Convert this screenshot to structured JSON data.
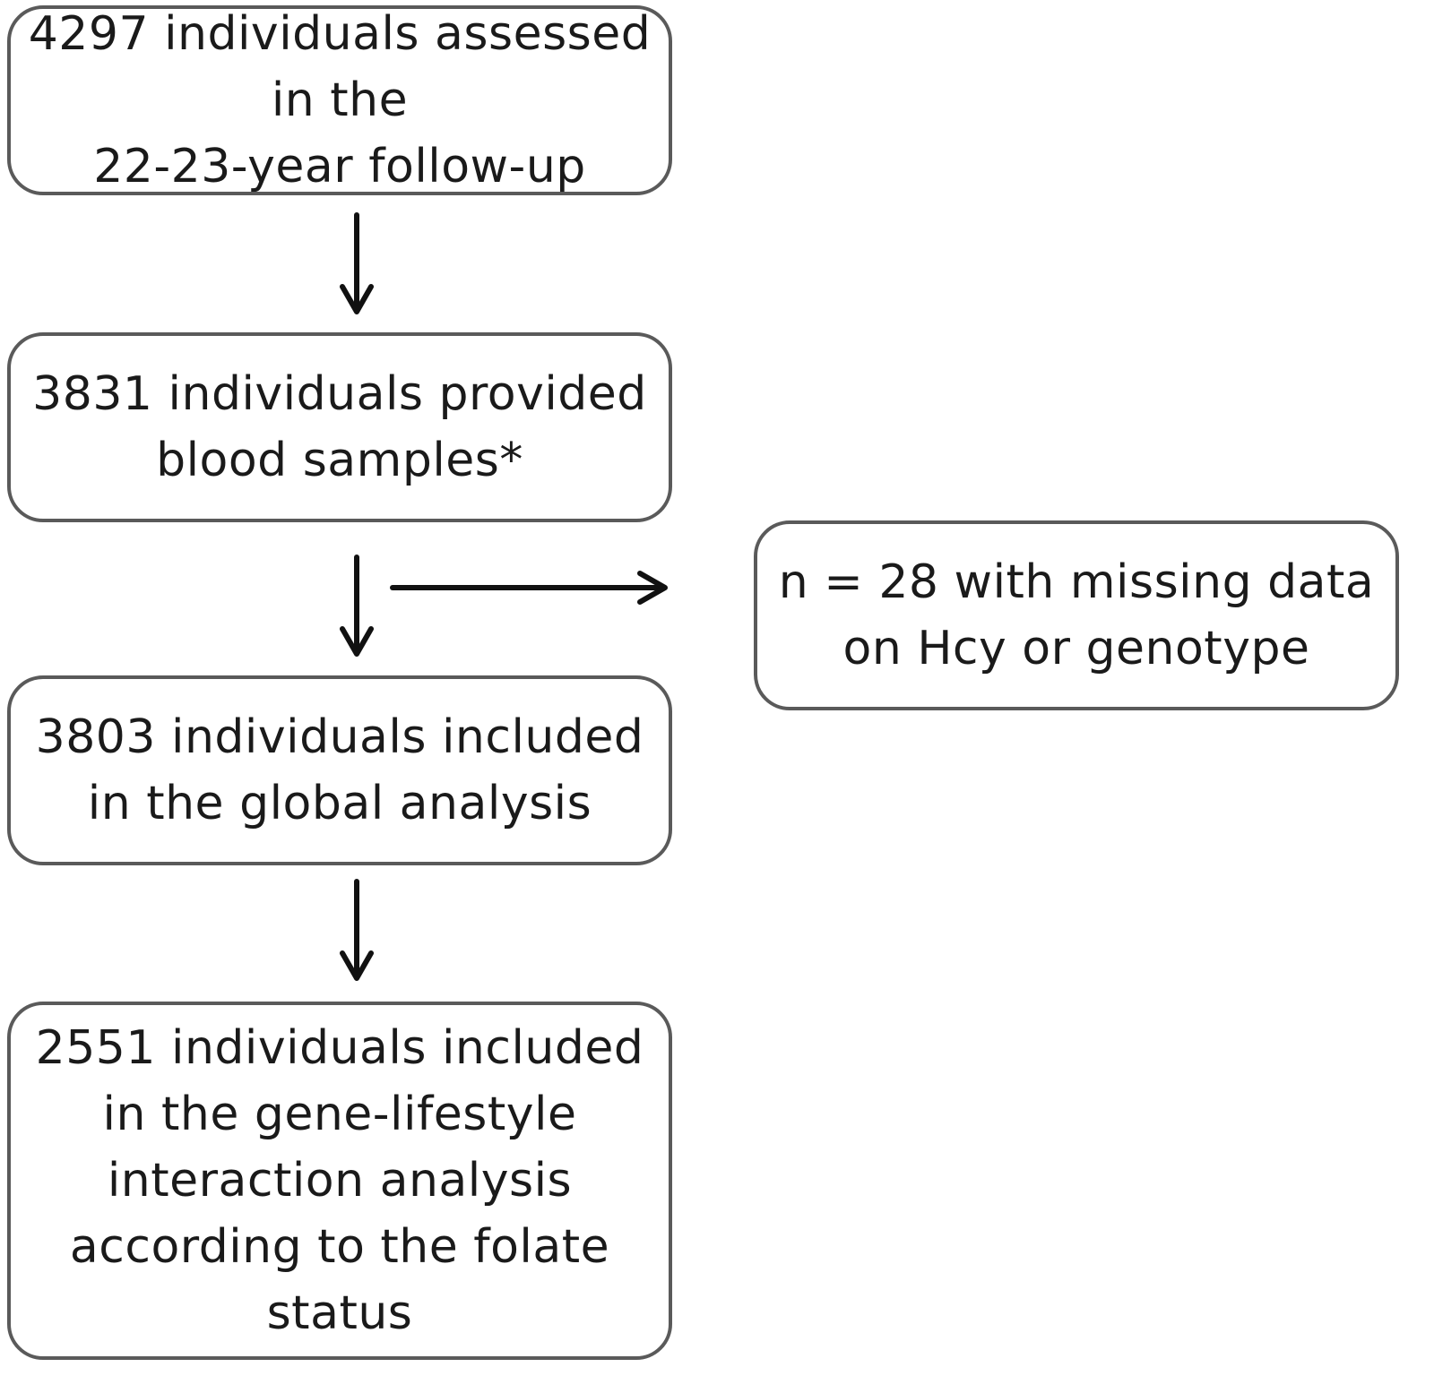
{
  "flow": {
    "assessed": [
      "4297 individuals assessed",
      "in the",
      "22-23-year follow-up"
    ],
    "blood_samples": [
      "3831 individuals provided",
      "blood samples*"
    ],
    "global_analysis": [
      "3803 individuals included",
      "in the global analysis"
    ],
    "interaction_analysis": [
      "2551 individuals included",
      "in the gene-lifestyle",
      "interaction analysis",
      "according to the folate",
      "status"
    ],
    "excluded": [
      "n = 28 with missing data",
      "on Hcy or genotype"
    ]
  },
  "colors": {
    "border": "#5a5a5a",
    "arrow": "#111111",
    "text": "#1a1a1a"
  }
}
